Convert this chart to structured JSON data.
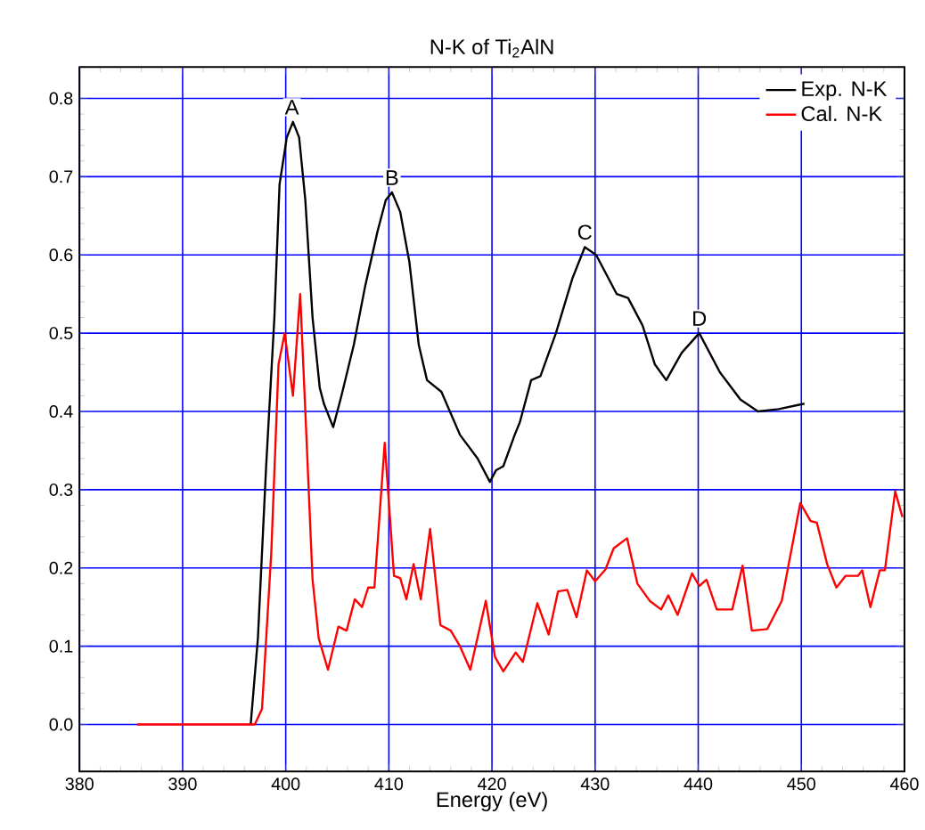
{
  "chart_data": {
    "type": "line",
    "title": "N-K of Ti$_{2}$AlN",
    "xlabel": "Energy (eV)",
    "xlim": [
      380,
      460
    ],
    "ylim": [
      -0.06,
      0.84
    ],
    "xticks": [
      380,
      390,
      400,
      410,
      420,
      430,
      440,
      450,
      460
    ],
    "yticks": [
      {
        "value": 0,
        "label": "0.0"
      },
      {
        "value": 0.1,
        "label": "0.1"
      },
      {
        "value": 0.2,
        "label": "0.2"
      },
      {
        "value": 0.3,
        "label": "0.3"
      },
      {
        "value": 0.4,
        "label": "0.4"
      },
      {
        "value": 0.5,
        "label": "0.5"
      },
      {
        "value": 0.6,
        "label": "0.6"
      },
      {
        "value": 0.7,
        "label": "0.7"
      },
      {
        "value": 0.8,
        "label": "0.8"
      }
    ],
    "grid": true,
    "legend": "top right",
    "marker": "none",
    "line_style": "solid",
    "series": [
      {
        "name": "Exp. N-K",
        "color": "#000000",
        "x": [
          396.6,
          397.3,
          398.1,
          398.9,
          399.4,
          400.1,
          400.7,
          401.3,
          401.9,
          402.6,
          403.3,
          403.7,
          404.6,
          405.4,
          406.6,
          407.7,
          408.9,
          409.7,
          410.3,
          411.1,
          412,
          412.9,
          413.7,
          415.1,
          416.9,
          418.6,
          419.8,
          420.4,
          421.1,
          422.2,
          422.7,
          423.8,
          424.7,
          426.2,
          427.8,
          429,
          430.1,
          432.1,
          433.2,
          434.6,
          435.8,
          436.9,
          438.4,
          440.1,
          442.1,
          444.1,
          445.8,
          447.8,
          450.3
        ],
        "values": [
          0,
          0.11,
          0.33,
          0.52,
          0.69,
          0.75,
          0.77,
          0.75,
          0.67,
          0.52,
          0.43,
          0.41,
          0.38,
          0.42,
          0.485,
          0.56,
          0.63,
          0.67,
          0.68,
          0.655,
          0.59,
          0.485,
          0.44,
          0.425,
          0.37,
          0.34,
          0.31,
          0.325,
          0.33,
          0.37,
          0.386,
          0.44,
          0.445,
          0.5,
          0.57,
          0.61,
          0.6,
          0.55,
          0.545,
          0.51,
          0.46,
          0.44,
          0.475,
          0.5,
          0.45,
          0.415,
          0.4,
          0.403,
          0.41
        ]
      },
      {
        "name": "Cal. N-K",
        "color": "#ff0000",
        "x": [
          385.6,
          397,
          397.7,
          398.6,
          399.3,
          399.9,
          400.7,
          401.4,
          402,
          402.6,
          403.2,
          404.1,
          405.1,
          405.9,
          406.7,
          407.4,
          408,
          408.6,
          409.6,
          410.5,
          411.1,
          411.7,
          412.4,
          413.1,
          414,
          415,
          416,
          416.9,
          417.9,
          419.4,
          420.3,
          421.1,
          422.3,
          423,
          424.4,
          425.5,
          426.4,
          427.3,
          428.2,
          429.2,
          430,
          431,
          431.8,
          433.1,
          434.1,
          435.3,
          436.4,
          437.1,
          438,
          439.4,
          440.1,
          440.8,
          441.8,
          443.3,
          444.3,
          445.2,
          446.7,
          448.1,
          449.9,
          450.9,
          451.5,
          452.5,
          453.4,
          454.3,
          455.5,
          455.9,
          456.7,
          457.6,
          458.1,
          459.1,
          459.8
        ],
        "values": [
          0,
          0,
          0.02,
          0.22,
          0.46,
          0.5,
          0.42,
          0.55,
          0.37,
          0.185,
          0.11,
          0.07,
          0.125,
          0.12,
          0.16,
          0.15,
          0.175,
          0.175,
          0.36,
          0.19,
          0.187,
          0.16,
          0.205,
          0.16,
          0.25,
          0.127,
          0.12,
          0.1,
          0.07,
          0.158,
          0.086,
          0.068,
          0.092,
          0.08,
          0.155,
          0.115,
          0.17,
          0.172,
          0.137,
          0.197,
          0.183,
          0.198,
          0.225,
          0.238,
          0.18,
          0.158,
          0.147,
          0.165,
          0.14,
          0.193,
          0.177,
          0.185,
          0.147,
          0.147,
          0.203,
          0.12,
          0.122,
          0.158,
          0.283,
          0.26,
          0.258,
          0.205,
          0.175,
          0.19,
          0.19,
          0.197,
          0.15,
          0.197,
          0.197,
          0.298,
          0.265
        ]
      }
    ],
    "annotations": [
      {
        "text": "A",
        "x": 400.6,
        "y": 0.77
      },
      {
        "text": "B",
        "x": 410.3,
        "y": 0.68
      },
      {
        "text": "C",
        "x": 429,
        "y": 0.61
      },
      {
        "text": "D",
        "x": 440.1,
        "y": 0.5
      }
    ]
  }
}
